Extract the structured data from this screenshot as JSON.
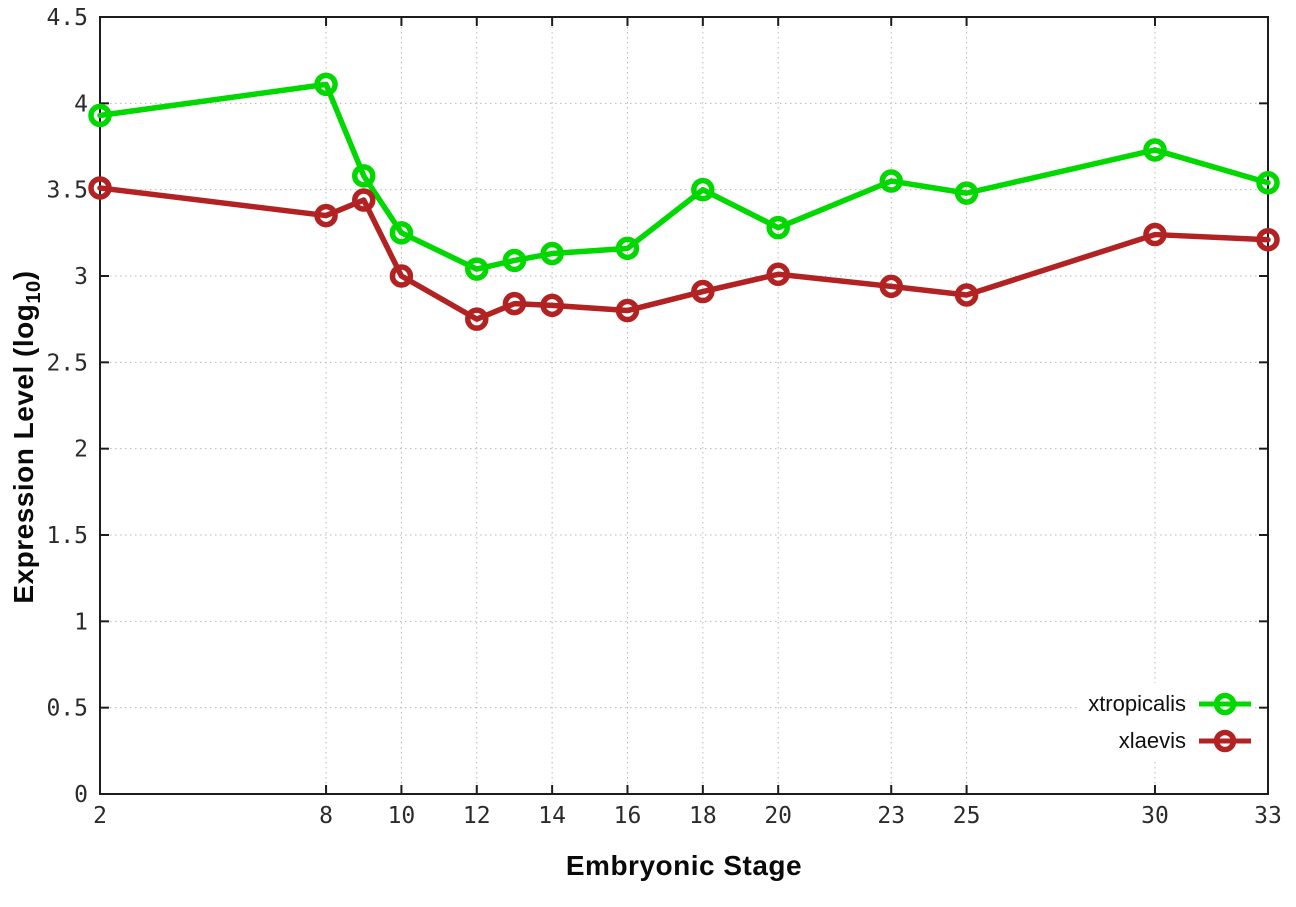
{
  "figure": {
    "background": "#ffffff",
    "grid_color": "#b8b8b8",
    "axis_color": "#1c1c1c",
    "tick_label_color": "#2b2b2b"
  },
  "axes": {
    "x_label": "Embryonic Stage",
    "y_label_prefix": "Expression Level (log",
    "y_label_sub": "10",
    "y_label_suffix": ")"
  },
  "chart_data": {
    "type": "line",
    "title": "",
    "xlabel": "Embryonic Stage",
    "ylabel": "Expression Level (log10)",
    "x": [
      2,
      8,
      9,
      10,
      12,
      13,
      14,
      16,
      18,
      20,
      23,
      25,
      30,
      33
    ],
    "series": [
      {
        "name": "xtropicalis",
        "color": "#00d800",
        "values": [
          3.93,
          4.11,
          3.58,
          3.25,
          3.04,
          3.09,
          3.13,
          3.16,
          3.5,
          3.28,
          3.55,
          3.48,
          3.73,
          3.54
        ]
      },
      {
        "name": "xlaevis",
        "color": "#b22222",
        "values": [
          3.51,
          3.35,
          3.44,
          3.0,
          2.75,
          2.84,
          2.83,
          2.8,
          2.91,
          3.01,
          2.94,
          2.89,
          3.24,
          3.21
        ]
      }
    ],
    "xlim": [
      2,
      33
    ],
    "ylim": [
      0,
      4.5
    ],
    "x_ticks": [
      2,
      8,
      10,
      12,
      14,
      16,
      18,
      20,
      23,
      25,
      30,
      33
    ],
    "x_tick_labels": [
      "2",
      "8",
      "10",
      "12",
      "14",
      "16",
      "18",
      "20",
      "23",
      "25",
      "30",
      "33"
    ],
    "y_ticks": [
      0,
      0.5,
      1,
      1.5,
      2,
      2.5,
      3,
      3.5,
      4,
      4.5
    ],
    "y_tick_labels": [
      "0",
      "0.5",
      "1",
      "1.5",
      "2",
      "2.5",
      "3",
      "3.5",
      "4",
      "4.5"
    ],
    "grid": true,
    "legend_position": "bottom-right",
    "marker": "open-circle"
  }
}
